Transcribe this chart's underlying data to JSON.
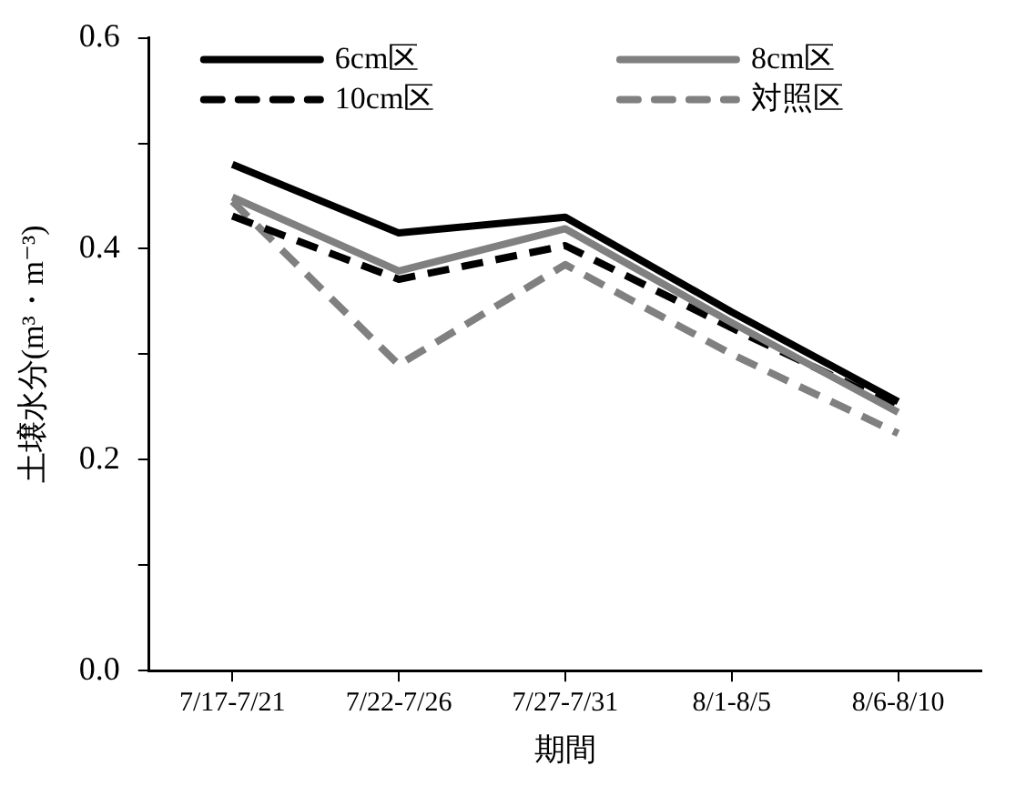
{
  "chart_data": {
    "type": "line",
    "xlabel": "期間",
    "ylabel": "土壌水分(m³・m⁻³)",
    "categories": [
      "7/17-7/21",
      "7/22-7/26",
      "7/27-7/31",
      "8/1-8/5",
      "8/6-8/10"
    ],
    "series": [
      {
        "name": "6cm区",
        "color": "#000000",
        "line_style": "solid",
        "values": [
          0.48,
          0.415,
          0.43,
          0.34,
          0.255
        ]
      },
      {
        "name": "8cm区",
        "color": "#808080",
        "line_style": "solid",
        "values": [
          0.449,
          0.379,
          0.419,
          0.33,
          0.245
        ]
      },
      {
        "name": "10cm区",
        "color": "#000000",
        "line_style": "dashed",
        "values": [
          0.431,
          0.371,
          0.403,
          0.325,
          0.25
        ]
      },
      {
        "name": "対照区",
        "color": "#808080",
        "line_style": "dashed",
        "values": [
          0.445,
          0.29,
          0.385,
          0.3,
          0.225
        ]
      }
    ],
    "ylim": [
      0,
      0.6
    ],
    "yticks": [
      {
        "value": 0,
        "label": "0.0"
      },
      {
        "value": 0.1,
        "label": null
      },
      0.2,
      {
        "value": 0.3,
        "label": null
      },
      0.4,
      {
        "value": 0.5,
        "label": null
      },
      0.6
    ],
    "grid": false,
    "legend": "top",
    "marker": "none"
  }
}
